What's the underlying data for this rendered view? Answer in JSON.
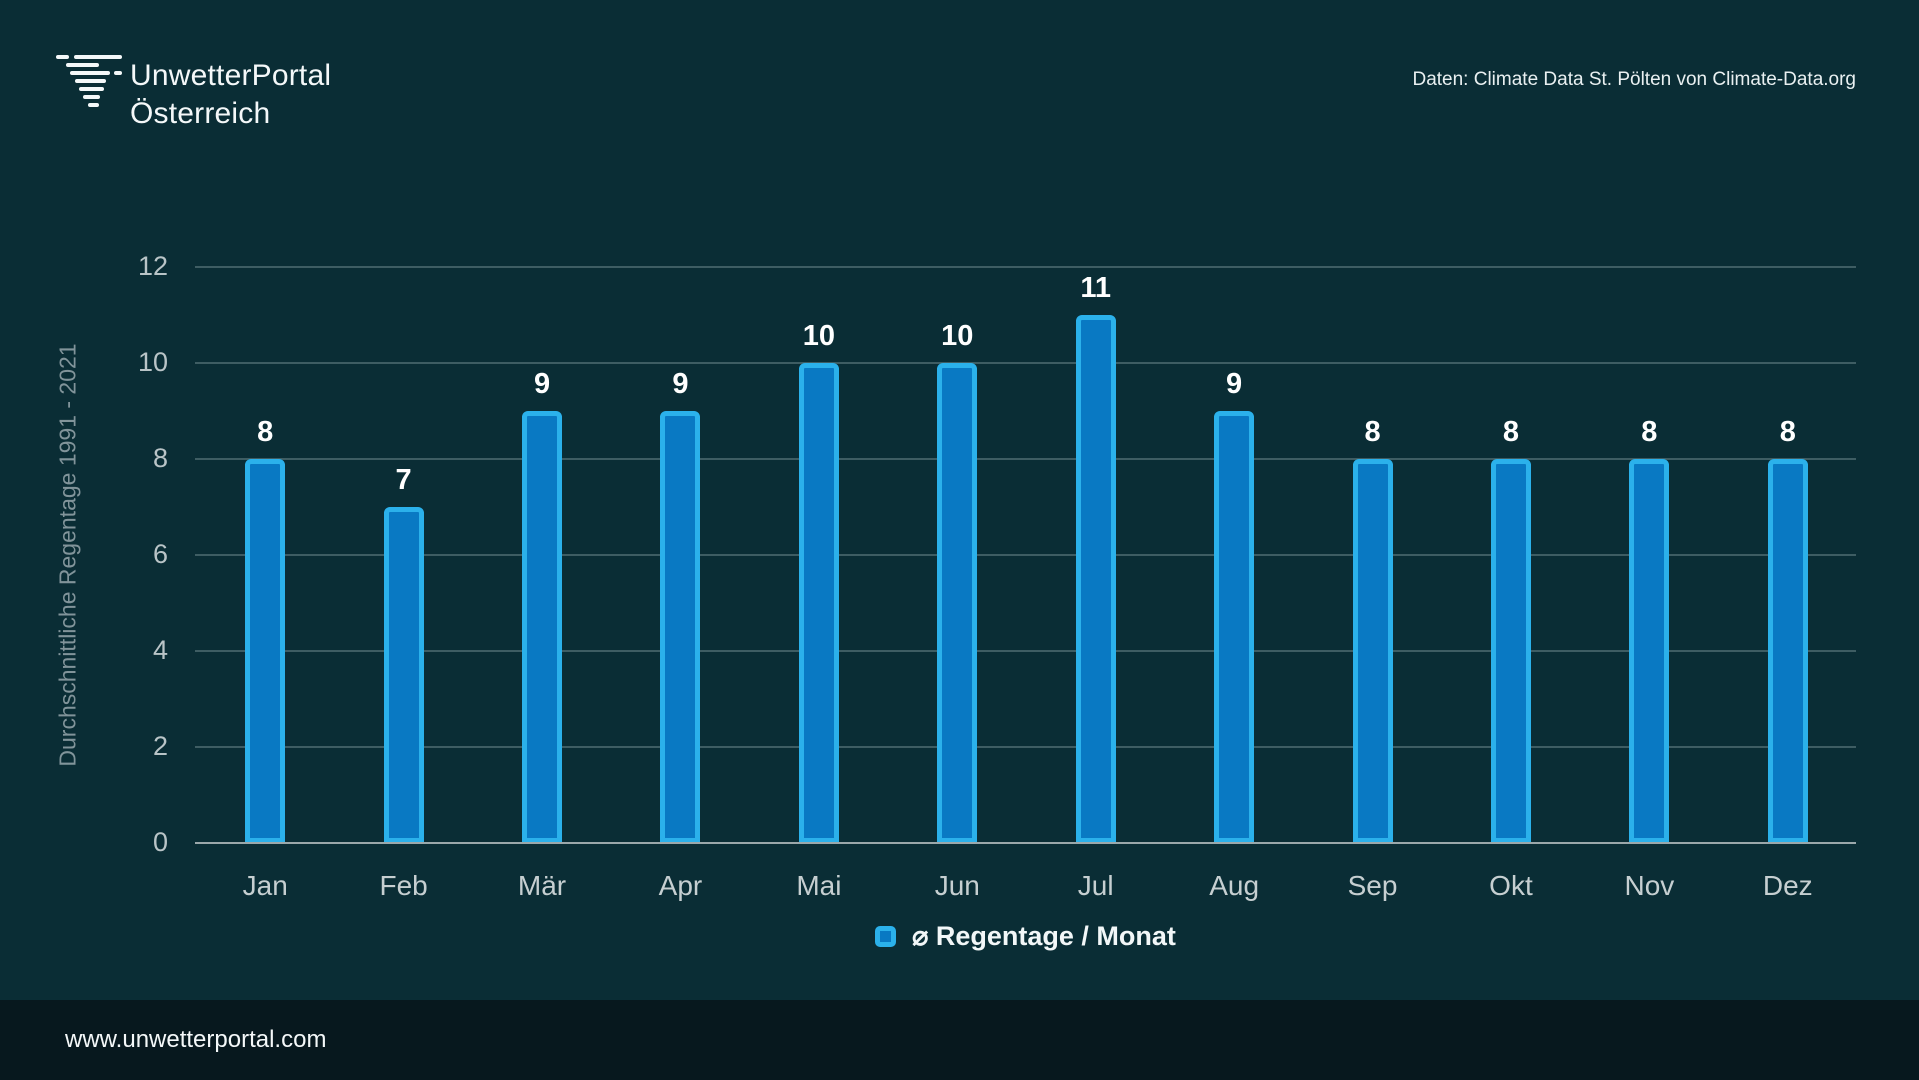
{
  "brand": {
    "line1": "UnwetterPortal",
    "line2": "Österreich"
  },
  "attribution": "Daten: Climate Data St. Pölten von Climate-Data.org",
  "footer": {
    "url": "www.unwetterportal.com"
  },
  "colors": {
    "background": "#0A2D35",
    "footer_bg": "#07181E",
    "bar_fill": "#0979C3",
    "bar_border": "#2BB1EB",
    "grid": "rgba(214,230,233,0.26)",
    "axis_line": "#9BA8AB",
    "tick_text": "#B9C4C7",
    "value_text": "#FFFFFF"
  },
  "chart_data": {
    "type": "bar",
    "categories": [
      "Jan",
      "Feb",
      "Mär",
      "Apr",
      "Mai",
      "Jun",
      "Jul",
      "Aug",
      "Sep",
      "Okt",
      "Nov",
      "Dez"
    ],
    "values": [
      8,
      7,
      9,
      9,
      10,
      10,
      11,
      9,
      8,
      8,
      8,
      8
    ],
    "title": "",
    "xlabel": "",
    "ylabel": "Durchschnittliche Regentage 1991 - 2021",
    "ylim": [
      0,
      12
    ],
    "yticks": [
      0,
      2,
      4,
      6,
      8,
      10,
      12
    ],
    "grid": true,
    "bar_value_labels": true,
    "legend": {
      "label": "⌀ Regentage / Monat",
      "position": "bottom"
    }
  }
}
